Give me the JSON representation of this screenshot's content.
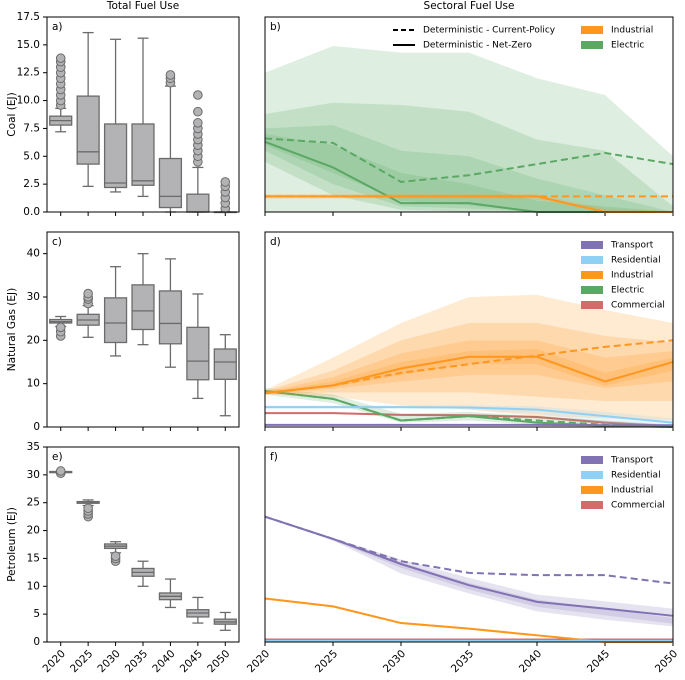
{
  "column_titles": [
    "Total Fuel Use",
    "Sectoral Fuel Use"
  ],
  "chart_data": [
    {
      "type": "box",
      "panel_label": "a)",
      "ylabel": "Coal (EJ)",
      "categories": [
        "2020",
        "2025",
        "2030",
        "2035",
        "2040",
        "2045",
        "2050"
      ],
      "xticklabels": false,
      "ylim": [
        0,
        17.5
      ],
      "yticks": [
        {
          "value": 0,
          "label": "0.0"
        },
        {
          "value": 2.5,
          "label": "2.5"
        },
        {
          "value": 5,
          "label": "5.0"
        },
        {
          "value": 7.5,
          "label": "7.5"
        },
        {
          "value": 10,
          "label": "10.0"
        },
        {
          "value": 12.5,
          "label": "12.5"
        },
        {
          "value": 15,
          "label": "15.0"
        },
        {
          "value": 17.5,
          "label": "17.5"
        }
      ],
      "color": "#b3b3b5",
      "boxes": [
        {
          "whislo": 7.2,
          "q1": 7.8,
          "med": 8.2,
          "q3": 8.6,
          "whishi": 9.3,
          "fliers": [
            9.6,
            10,
            10.5,
            11,
            11.5,
            12,
            12.5,
            13,
            13.5,
            13.8
          ]
        },
        {
          "whislo": 2.3,
          "q1": 4.3,
          "med": 5.4,
          "q3": 10.4,
          "whishi": 16.1,
          "fliers": []
        },
        {
          "whislo": 1.8,
          "q1": 2.2,
          "med": 2.6,
          "q3": 7.9,
          "whishi": 15.5,
          "fliers": []
        },
        {
          "whislo": 1.4,
          "q1": 2.4,
          "med": 2.8,
          "q3": 7.9,
          "whishi": 15.6,
          "fliers": []
        },
        {
          "whislo": 0,
          "q1": 0.4,
          "med": 1.4,
          "q3": 4.8,
          "whishi": 11.3,
          "fliers": [
            11.6,
            12,
            12.3
          ]
        },
        {
          "whislo": 0,
          "q1": 0,
          "med": 0,
          "q3": 1.6,
          "whishi": 4.0,
          "fliers": [
            4.5,
            5,
            5.5,
            6,
            6.5,
            7,
            7.5,
            8,
            9,
            10.5
          ]
        },
        {
          "whislo": 0,
          "q1": 0,
          "med": 0,
          "q3": 0,
          "whishi": 0,
          "fliers": [
            0.3,
            0.8,
            1.3,
            1.8,
            2.3,
            2.7
          ]
        }
      ]
    },
    {
      "type": "fan",
      "panel_label": "b)",
      "x": [
        2020,
        2025,
        2030,
        2035,
        2040,
        2045,
        2050
      ],
      "xlim": [
        2020,
        2050
      ],
      "xticks": [
        2020,
        2025,
        2030,
        2035,
        2040,
        2045,
        2050
      ],
      "xticklabels": false,
      "ylim": [
        0,
        17.5
      ],
      "legend": "upper right",
      "line_styles": [
        {
          "name": "Deterministic - Current-Policy",
          "dashed": true
        },
        {
          "name": "Deterministic - Net-Zero",
          "dashed": false
        }
      ],
      "series": [
        {
          "name": "Industrial",
          "color": "#ff961e",
          "bands": [
            {
              "lower": [
                1.2,
                1.2,
                1.2,
                1.2,
                1.1,
                0,
                0
              ],
              "upper": [
                1.6,
                1.6,
                1.6,
                1.6,
                1.6,
                0.3,
                0.1
              ]
            }
          ],
          "current_policy": [
            1.4,
            1.4,
            1.4,
            1.4,
            1.4,
            1.4,
            1.4
          ],
          "net_zero": [
            1.4,
            1.4,
            1.4,
            1.4,
            1.4,
            0,
            0
          ]
        },
        {
          "name": "Electric",
          "color": "#5aa864",
          "bands": [
            {
              "lower": [
                0,
                0,
                0,
                0,
                0,
                0,
                0
              ],
              "upper": [
                12.5,
                14.9,
                14.3,
                14.3,
                12,
                10.5,
                5
              ]
            },
            {
              "lower": [
                4.5,
                1.5,
                0.2,
                0,
                0,
                0,
                0
              ],
              "upper": [
                8.8,
                9.8,
                9.6,
                9,
                6.5,
                5.5,
                0.5
              ]
            },
            {
              "lower": [
                5.5,
                2.5,
                0.5,
                0.3,
                0,
                0,
                0
              ],
              "upper": [
                7.5,
                7.8,
                5.5,
                5,
                3,
                1.5,
                0
              ]
            },
            {
              "lower": [
                6,
                3.5,
                1,
                0.6,
                0,
                0,
                0
              ],
              "upper": [
                7,
                6,
                3.5,
                2.5,
                1,
                0.5,
                0
              ]
            }
          ],
          "current_policy": [
            6.6,
            6.2,
            2.7,
            3.3,
            4.3,
            5.3,
            4.3
          ],
          "net_zero": [
            6.3,
            4,
            0.8,
            0.8,
            0,
            0,
            0
          ]
        }
      ]
    },
    {
      "type": "box",
      "panel_label": "c)",
      "ylabel": "Natural Gas (EJ)",
      "categories": [
        "2020",
        "2025",
        "2030",
        "2035",
        "2040",
        "2045",
        "2050"
      ],
      "xticklabels": false,
      "ylim": [
        0,
        45
      ],
      "yticks": [
        0,
        10,
        20,
        30,
        40
      ],
      "color": "#b3b3b5",
      "boxes": [
        {
          "whislo": 23.2,
          "q1": 24,
          "med": 24.3,
          "q3": 24.8,
          "whishi": 25.5,
          "fliers": [
            21,
            22,
            23
          ]
        },
        {
          "whislo": 20.7,
          "q1": 23.5,
          "med": 24.7,
          "q3": 26,
          "whishi": 28,
          "fliers": [
            28.5,
            29.5,
            30,
            30.8
          ]
        },
        {
          "whislo": 16.4,
          "q1": 19.5,
          "med": 24,
          "q3": 29.8,
          "whishi": 37,
          "fliers": []
        },
        {
          "whislo": 19,
          "q1": 22.5,
          "med": 26.8,
          "q3": 32.8,
          "whishi": 40,
          "fliers": []
        },
        {
          "whislo": 13.8,
          "q1": 19.2,
          "med": 23.9,
          "q3": 31.4,
          "whishi": 38.8,
          "fliers": []
        },
        {
          "whislo": 6.6,
          "q1": 10.9,
          "med": 15.2,
          "q3": 23,
          "whishi": 30.7,
          "fliers": []
        },
        {
          "whislo": 2.6,
          "q1": 11,
          "med": 15,
          "q3": 18,
          "whishi": 21.3,
          "fliers": []
        }
      ]
    },
    {
      "type": "fan",
      "panel_label": "d)",
      "x": [
        2020,
        2025,
        2030,
        2035,
        2040,
        2045,
        2050
      ],
      "xlim": [
        2020,
        2050
      ],
      "xticks": [
        2020,
        2025,
        2030,
        2035,
        2040,
        2045,
        2050
      ],
      "xticklabels": false,
      "ylim": [
        0,
        45
      ],
      "legend": "upper right",
      "series": [
        {
          "name": "Transport",
          "color": "#8172b3",
          "bands": [
            {
              "lower": [
                0.3,
                0.3,
                0.3,
                0.3,
                0.3,
                0.2,
                0.2
              ],
              "upper": [
                0.7,
                0.7,
                0.7,
                0.7,
                0.7,
                0.6,
                0.6
              ]
            }
          ],
          "net_zero": [
            0.5,
            0.5,
            0.5,
            0.5,
            0.5,
            0.4,
            0.4
          ]
        },
        {
          "name": "Residential",
          "color": "#8fd0f5",
          "bands": [
            {
              "lower": [
                4.2,
                4.2,
                4.2,
                4,
                3,
                1,
                0
              ],
              "upper": [
                5,
                5,
                5,
                5,
                4.8,
                3.5,
                2
              ]
            }
          ],
          "net_zero": [
            4.6,
            4.6,
            4.6,
            4.5,
            4,
            2.5,
            1
          ]
        },
        {
          "name": "Industrial",
          "color": "#ff961e",
          "bands": [
            {
              "lower": [
                7.5,
                7,
                5,
                4,
                2.5,
                2,
                1.5
              ],
              "upper": [
                8.5,
                16,
                24,
                30,
                30.5,
                27,
                24
              ]
            },
            {
              "lower": [
                7.6,
                8,
                8,
                8,
                7,
                6,
                6
              ],
              "upper": [
                8.3,
                13,
                20,
                24,
                24,
                21,
                19.5
              ]
            },
            {
              "lower": [
                7.7,
                8.8,
                10.5,
                12,
                12,
                9,
                10.5
              ],
              "upper": [
                8.1,
                11.5,
                17,
                20,
                20,
                16,
                17.5
              ]
            },
            {
              "lower": [
                7.8,
                9.2,
                12,
                14.5,
                14.5,
                9.5,
                13
              ],
              "upper": [
                8,
                10.5,
                15,
                17.5,
                18,
                12.5,
                16
              ]
            }
          ],
          "current_policy": [
            7.8,
            9.6,
            12.5,
            14.5,
            16.5,
            18.5,
            20
          ],
          "net_zero": [
            7.8,
            9.6,
            13.5,
            16.2,
            16.2,
            10.5,
            15
          ]
        },
        {
          "name": "Electric",
          "color": "#5aa864",
          "bands": [
            {
              "lower": [
                7.5,
                5.5,
                1,
                1.5,
                0.5,
                0,
                0
              ],
              "upper": [
                9,
                7.5,
                3,
                3.5,
                2.5,
                1.5,
                0.5
              ]
            }
          ],
          "current_policy": [
            8.3,
            6.5,
            1.5,
            2.5,
            1.5,
            0.5,
            0
          ],
          "net_zero": [
            8.3,
            6.5,
            1.5,
            2.5,
            1,
            0.3,
            0
          ]
        },
        {
          "name": "Commercial",
          "color": "#d36b6b",
          "bands": [
            {
              "lower": [
                3,
                3,
                2.5,
                2.4,
                2,
                0.6,
                0
              ],
              "upper": [
                3.4,
                3.4,
                3.1,
                3,
                2.6,
                1.4,
                0.5
              ]
            }
          ],
          "net_zero": [
            3.2,
            3.2,
            2.8,
            2.7,
            2.3,
            1,
            0.2
          ]
        }
      ]
    },
    {
      "type": "box",
      "panel_label": "e)",
      "ylabel": "Petroleum (EJ)",
      "categories": [
        "2020",
        "2025",
        "2030",
        "2035",
        "2040",
        "2045",
        "2050"
      ],
      "xticklabels": true,
      "ylim": [
        0,
        35
      ],
      "yticks": [
        0,
        5,
        10,
        15,
        20,
        25,
        30,
        35
      ],
      "color": "#b3b3b5",
      "boxes": [
        {
          "whislo": 30.4,
          "q1": 30.4,
          "med": 30.5,
          "q3": 30.6,
          "whishi": 30.6,
          "fliers": [
            30.3,
            30.7
          ]
        },
        {
          "whislo": 24.5,
          "q1": 24.9,
          "med": 25.1,
          "q3": 25.2,
          "whishi": 25.5,
          "fliers": [
            22.5,
            23,
            23.5,
            24
          ]
        },
        {
          "whislo": 16,
          "q1": 16.8,
          "med": 17.2,
          "q3": 17.6,
          "whishi": 18,
          "fliers": [
            14.5,
            15,
            15.4
          ]
        },
        {
          "whislo": 10,
          "q1": 11.8,
          "med": 12.5,
          "q3": 13.2,
          "whishi": 14.5,
          "fliers": []
        },
        {
          "whislo": 6.2,
          "q1": 7.6,
          "med": 8.2,
          "q3": 8.8,
          "whishi": 11.3,
          "fliers": []
        },
        {
          "whislo": 3.4,
          "q1": 4.5,
          "med": 5.2,
          "q3": 5.8,
          "whishi": 8,
          "fliers": []
        },
        {
          "whislo": 2.1,
          "q1": 3.2,
          "med": 3.6,
          "q3": 4.1,
          "whishi": 5.3,
          "fliers": []
        }
      ]
    },
    {
      "type": "fan",
      "panel_label": "f)",
      "x": [
        2020,
        2025,
        2030,
        2035,
        2040,
        2045,
        2050
      ],
      "xlim": [
        2020,
        2050
      ],
      "xticks": [
        2020,
        2025,
        2030,
        2035,
        2040,
        2045,
        2050
      ],
      "xticklabels": true,
      "ylim": [
        0,
        35
      ],
      "legend": "upper right",
      "series": [
        {
          "name": "Transport",
          "color": "#8172b3",
          "bands": [
            {
              "lower": [
                22.4,
                18.2,
                12.3,
                8.7,
                5.5,
                4,
                2.8
              ],
              "upper": [
                22.6,
                18.7,
                14.8,
                11.5,
                8.5,
                7.3,
                6
              ]
            },
            {
              "lower": [
                22.45,
                18.3,
                13.3,
                9.4,
                6.3,
                4.8,
                3.3
              ],
              "upper": [
                22.55,
                18.6,
                14.3,
                10.6,
                7.6,
                6,
                4.3
              ]
            }
          ],
          "current_policy": [
            22.5,
            18.5,
            14.5,
            12.4,
            12,
            12,
            10.5
          ],
          "net_zero": [
            22.5,
            18.5,
            14,
            10.2,
            7.2,
            6,
            4.7
          ]
        },
        {
          "name": "Residential",
          "color": "#8fd0f5",
          "bands": [
            {
              "lower": [
                0.1,
                0.1,
                0.1,
                0.1,
                0.1,
                0.1,
                0.1
              ],
              "upper": [
                0.3,
                0.3,
                0.3,
                0.3,
                0.3,
                0.3,
                0.3
              ]
            }
          ],
          "net_zero": [
            0.2,
            0.2,
            0.2,
            0.2,
            0.2,
            0.2,
            0.2
          ]
        },
        {
          "name": "Industrial",
          "color": "#ff961e",
          "bands": [
            {
              "lower": [
                7.6,
                6.2,
                3.2,
                2.2,
                1,
                0,
                0
              ],
              "upper": [
                8,
                6.6,
                3.6,
                2.6,
                1.4,
                0.2,
                0.2
              ]
            }
          ],
          "net_zero": [
            7.8,
            6.4,
            3.4,
            2.4,
            1.2,
            0,
            0
          ]
        },
        {
          "name": "Commercial",
          "color": "#d36b6b",
          "bands": [
            {
              "lower": [
                0.3,
                0.3,
                0.3,
                0.3,
                0.3,
                0.3,
                0.3
              ],
              "upper": [
                0.55,
                0.55,
                0.55,
                0.55,
                0.55,
                0.55,
                0.55
              ]
            }
          ],
          "net_zero": [
            0.45,
            0.45,
            0.45,
            0.45,
            0.45,
            0.45,
            0.45
          ]
        }
      ]
    }
  ]
}
